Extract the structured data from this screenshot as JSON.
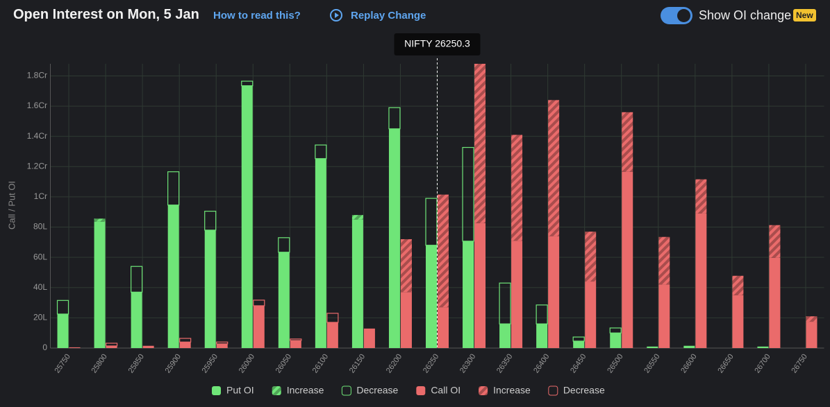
{
  "header": {
    "title": "Open Interest on Mon, 5 Jan",
    "help_link": "How to read this?",
    "replay": "Replay Change",
    "toggle_label": "Show OI change",
    "badge": "New"
  },
  "chart_data": {
    "type": "bar",
    "y_label": "Call / Put OI",
    "spot_label": "NIFTY 26250.3",
    "categories": [
      "25750",
      "25800",
      "25850",
      "25900",
      "25950",
      "26000",
      "26050",
      "26100",
      "26150",
      "26200",
      "26250",
      "26300",
      "26350",
      "26400",
      "26450",
      "26500",
      "26550",
      "26600",
      "26650",
      "26700",
      "26750"
    ],
    "series": [
      {
        "name": "Put OI",
        "color": "#6fe578",
        "pattern": "solid",
        "values": [
          22.5,
          83.6,
          37,
          94.6,
          78,
          173.5,
          63.4,
          125.3,
          85,
          145,
          68,
          70.7,
          16,
          16,
          4.6,
          10,
          1,
          1.5,
          0,
          1,
          0
        ]
      },
      {
        "name": "Increase",
        "color": "#6fe578",
        "pattern": "hatch",
        "values": [
          0,
          2,
          0,
          0,
          0,
          0,
          0,
          0,
          3,
          0,
          0,
          0,
          0,
          0,
          0,
          0,
          0,
          0,
          0,
          0,
          0
        ]
      },
      {
        "name": "Decrease",
        "color": "#6fe578",
        "pattern": "outline",
        "values": [
          9,
          0,
          17,
          22,
          12.5,
          3,
          9.6,
          9,
          0,
          14,
          31,
          62,
          27,
          12.5,
          2.7,
          3.3,
          0,
          0,
          0,
          0,
          0
        ]
      },
      {
        "name": "Call OI",
        "color": "#ea6b6b",
        "pattern": "solid",
        "values": [
          0.5,
          1.4,
          1.5,
          4,
          2.8,
          28,
          5,
          17,
          12.9,
          37,
          27,
          82.6,
          71,
          74,
          44,
          116.6,
          42,
          89,
          35,
          59.7,
          17.4
        ]
      },
      {
        "name": "Increase",
        "color": "#ea6b6b",
        "pattern": "hatch",
        "values": [
          0,
          0,
          0,
          0,
          0,
          0,
          0,
          0,
          0,
          35,
          74.5,
          105.4,
          70,
          90,
          33,
          39.4,
          31.5,
          22.6,
          12.8,
          21.6,
          3.6
        ]
      },
      {
        "name": "Decrease",
        "color": "#ea6b6b",
        "pattern": "outline",
        "values": [
          0,
          1.8,
          0,
          2.4,
          1.2,
          3.7,
          1,
          6,
          0,
          0,
          0,
          0,
          0,
          0,
          0,
          0,
          0,
          0,
          0,
          0,
          0
        ]
      }
    ],
    "ylim": [
      0,
      188
    ],
    "yticks": [
      0,
      {
        "value": 20,
        "label": "20L"
      },
      {
        "value": 40,
        "label": "40L"
      },
      {
        "value": 60,
        "label": "60L"
      },
      {
        "value": 80,
        "label": "80L"
      },
      {
        "value": 100,
        "label": "1Cr"
      },
      {
        "value": 120,
        "label": "1.2Cr"
      },
      {
        "value": 140,
        "label": "1.4Cr"
      },
      {
        "value": 160,
        "label": "1.6Cr"
      },
      {
        "value": 180,
        "label": "1.8Cr"
      }
    ],
    "grid": true
  }
}
